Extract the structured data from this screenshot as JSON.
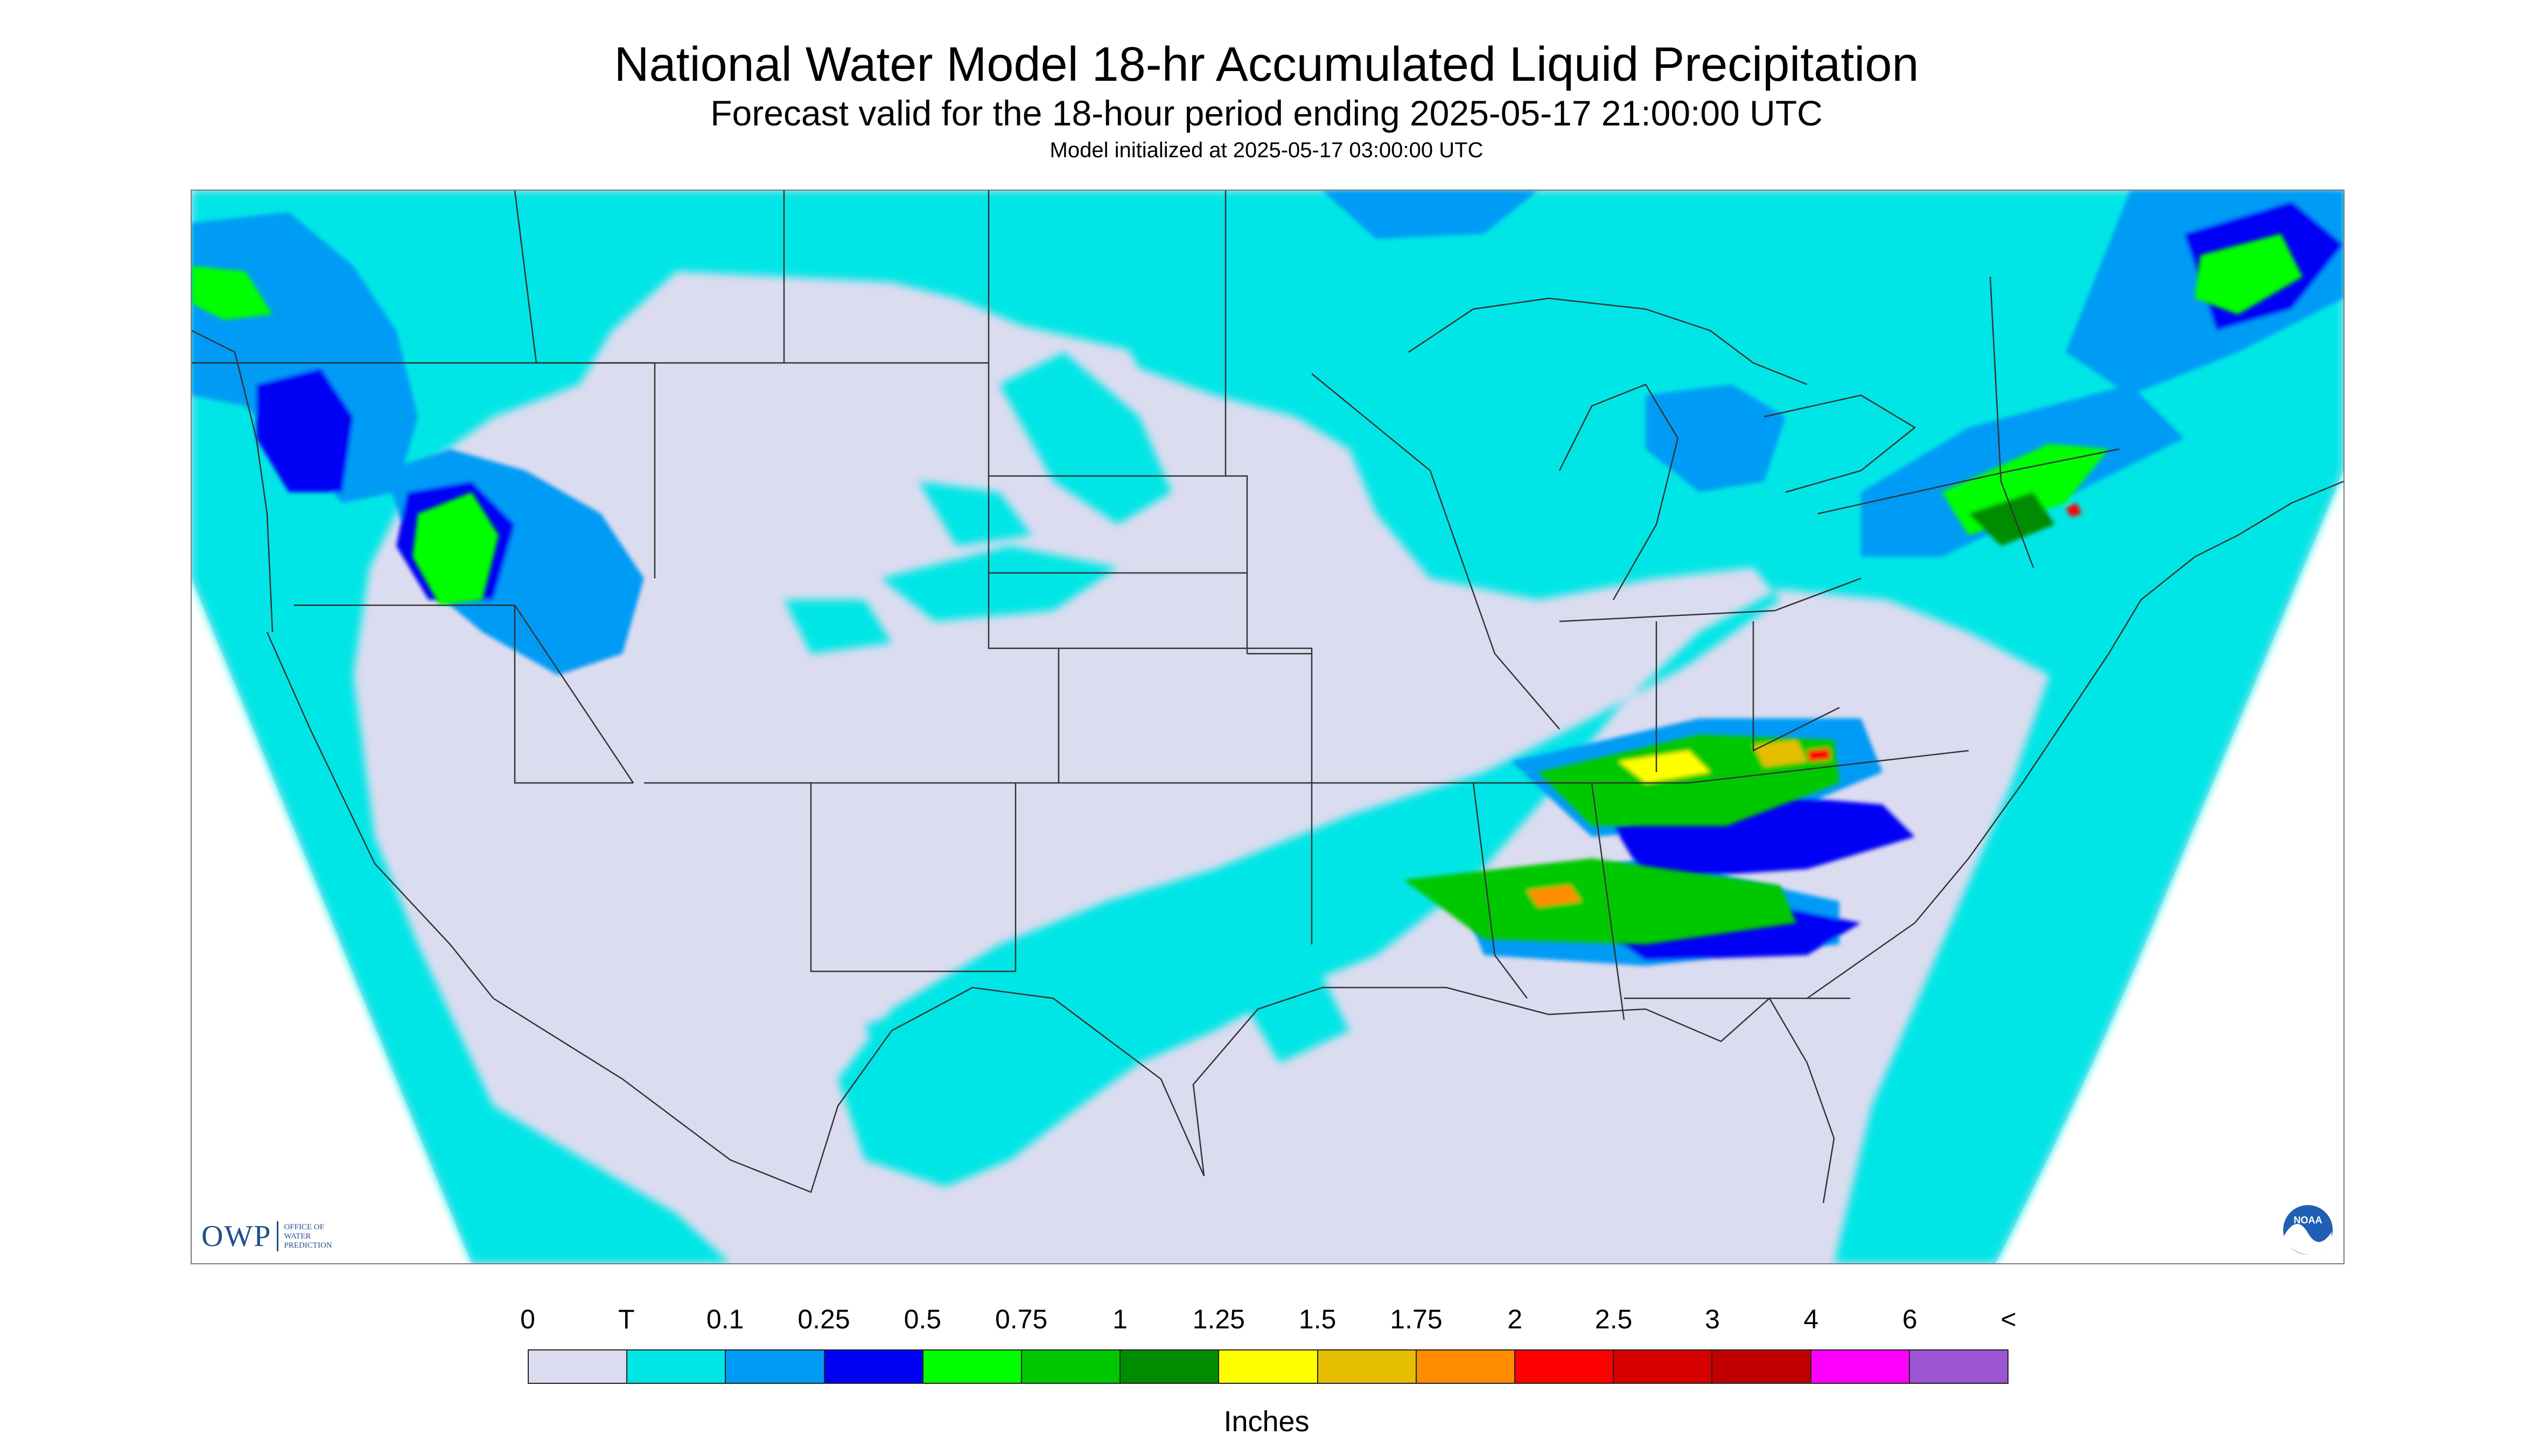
{
  "header": {
    "title": "National Water Model 18-hr Accumulated Liquid Precipitation",
    "subtitle": "Forecast valid for the 18-hour period ending 2025-05-17 21:00:00 UTC",
    "init_line": "Model initialized at 2025-05-17 03:00:00 UTC"
  },
  "logos": {
    "owp_letters": "OWP",
    "owp_words": [
      "OFFICE OF",
      "WATER",
      "PREDICTION"
    ],
    "noaa_text": "NOAA"
  },
  "legend": {
    "labels": [
      "0",
      "T",
      "0.1",
      "0.25",
      "0.5",
      "0.75",
      "1",
      "1.25",
      "1.5",
      "1.75",
      "2",
      "2.5",
      "3",
      "4",
      "6",
      "<"
    ],
    "colors": [
      "#dcdcf0",
      "#00e6e6",
      "#009bf5",
      "#0000f5",
      "#00ff00",
      "#00c800",
      "#008c00",
      "#ffff00",
      "#e6be00",
      "#ff8c00",
      "#ff0000",
      "#d70000",
      "#c00000",
      "#ff00ff",
      "#9b55d2"
    ],
    "units": "Inches"
  },
  "map": {
    "background_color": "#dcdcf0",
    "outside_color": "#ffffff",
    "boundary_color": "#333333"
  }
}
